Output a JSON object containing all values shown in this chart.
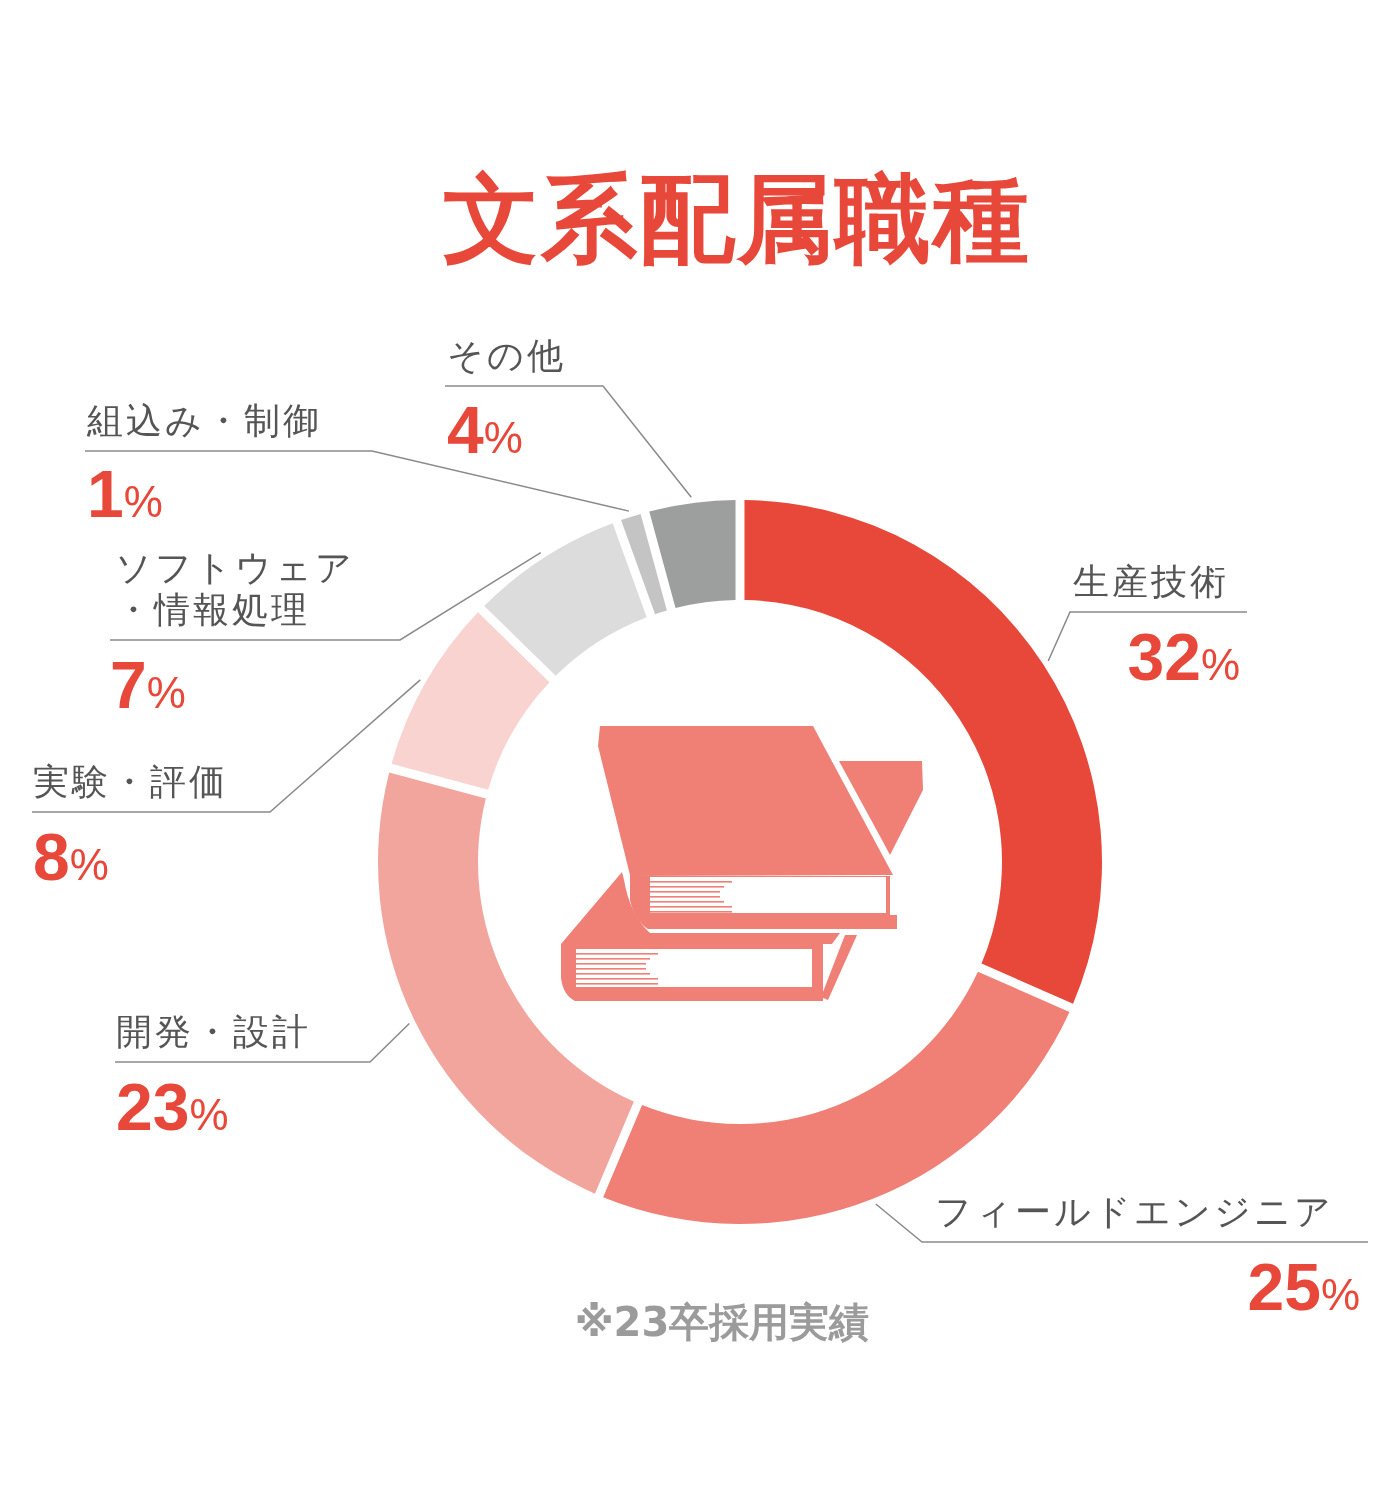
{
  "chart_data": {
    "type": "donut",
    "title": "文系配属職種",
    "categories": [
      "生産技術",
      "フィールドエンジニア",
      "開発・設計",
      "実験・評価",
      "ソフトウェア・情報処理",
      "組込み・制御",
      "その他"
    ],
    "values": [
      32,
      25,
      23,
      8,
      7,
      1,
      4
    ],
    "colors": [
      "#e8483a",
      "#f07f76",
      "#f2a59d",
      "#f8d3cf",
      "#dcdcdc",
      "#c4c4c4",
      "#9d9e9e"
    ],
    "value_labels": [
      "32%",
      "25%",
      "23%",
      "8%",
      "7%",
      "1%",
      "4%"
    ],
    "annotations": [
      "※23卒採用実績"
    ]
  }
}
